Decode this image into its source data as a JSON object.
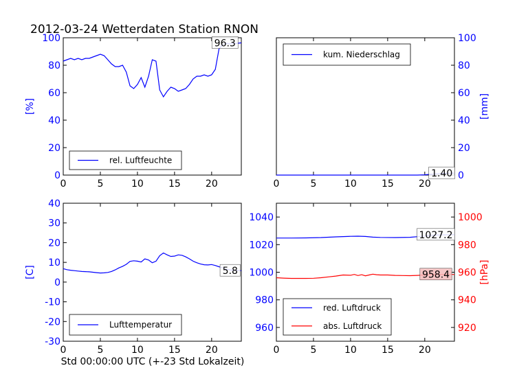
{
  "figure": {
    "title": "2012-03-24 Wetterdaten Station RNON",
    "xlabel": "Std 00:00:00 UTC (+-23 Std Lokalzeit)"
  },
  "colors": {
    "blue": "#0000ff",
    "red": "#ff0000",
    "black": "#000000",
    "annot_bg": "#ffffff",
    "annot_bg_red": "#f4bcbc"
  },
  "chart_data": [
    {
      "id": "humidity",
      "type": "line",
      "ylabel": "[%]",
      "ylabel_side": "left",
      "ylabel_color": "#0000ff",
      "ylim": [
        0,
        100
      ],
      "yticks": [
        0,
        20,
        40,
        60,
        80,
        100
      ],
      "xlim": [
        0,
        24
      ],
      "xticks": [
        0,
        5,
        10,
        15,
        20
      ],
      "legend": "bottom-left",
      "annotation": "96.3",
      "annotation_x": 21.8,
      "annotation_y": 96.3,
      "series": [
        {
          "name": "rel. Luftfeuchte",
          "color": "#0000ff",
          "x": [
            0,
            0.5,
            1,
            1.5,
            2,
            2.5,
            3,
            3.5,
            4,
            4.5,
            5,
            5.5,
            6,
            6.5,
            7,
            7.5,
            8,
            8.5,
            9,
            9.5,
            10,
            10.5,
            11,
            11.5,
            12,
            12.5,
            13,
            13.5,
            14,
            14.5,
            15,
            15.5,
            16,
            16.5,
            17,
            17.5,
            18,
            18.5,
            19,
            19.5,
            20,
            20.5,
            21,
            21.5,
            22,
            22.5,
            23,
            23.5,
            24
          ],
          "values": [
            83,
            84,
            85,
            84,
            85,
            84,
            85,
            85,
            86,
            87,
            88,
            87,
            84,
            81,
            79,
            79,
            80,
            75,
            65,
            63,
            66,
            71,
            64,
            72,
            84,
            83,
            62,
            57,
            61,
            64,
            63,
            61,
            62,
            63,
            66,
            70,
            72,
            72,
            73,
            72,
            73,
            77,
            92,
            95,
            96,
            95.5,
            95.8,
            96,
            96.3
          ]
        }
      ]
    },
    {
      "id": "precip",
      "type": "line",
      "ylabel": "[mm]",
      "ylabel_side": "right",
      "ylabel_color": "#0000ff",
      "ylim": [
        0,
        100
      ],
      "yticks": [
        0,
        20,
        40,
        60,
        80,
        100
      ],
      "xlim": [
        0,
        24
      ],
      "xticks": [
        0,
        5,
        10,
        15,
        20
      ],
      "legend": "top-left",
      "annotation": "1.40",
      "annotation_x": 22.3,
      "annotation_y": 1.4,
      "series": [
        {
          "name": "kum. Niederschlag",
          "color": "#0000ff",
          "x": [
            0,
            5,
            10,
            15,
            19,
            20,
            21,
            22,
            23,
            24
          ],
          "values": [
            0,
            0,
            0,
            0,
            0,
            0.2,
            0.7,
            1.1,
            1.3,
            1.4
          ]
        }
      ]
    },
    {
      "id": "temperature",
      "type": "line",
      "ylabel": "[C]",
      "ylabel_side": "left",
      "ylabel_color": "#0000ff",
      "ylim": [
        -30,
        40
      ],
      "yticks": [
        -30,
        -20,
        -10,
        0,
        10,
        20,
        30,
        40
      ],
      "xlim": [
        0,
        24
      ],
      "xticks": [
        0,
        5,
        10,
        15,
        20
      ],
      "legend": "bottom-left",
      "annotation": "5.8",
      "annotation_x": 22.5,
      "annotation_y": 5.8,
      "series": [
        {
          "name": "Lufttemperatur",
          "color": "#0000ff",
          "x": [
            0,
            0.5,
            1,
            1.5,
            2,
            2.5,
            3,
            3.5,
            4,
            4.5,
            5,
            5.5,
            6,
            6.5,
            7,
            7.5,
            8,
            8.5,
            9,
            9.5,
            10,
            10.5,
            11,
            11.5,
            12,
            12.5,
            13,
            13.5,
            14,
            14.5,
            15,
            15.5,
            16,
            16.5,
            17,
            17.5,
            18,
            18.5,
            19,
            19.5,
            20,
            20.5,
            21,
            21.5,
            22,
            22.5,
            23,
            23.5,
            24
          ],
          "values": [
            6.8,
            6.3,
            6.0,
            5.8,
            5.6,
            5.4,
            5.3,
            5.2,
            5.0,
            4.8,
            4.6,
            4.7,
            4.9,
            5.4,
            6.2,
            7.2,
            8.0,
            9.0,
            10.5,
            10.8,
            10.6,
            10.2,
            11.8,
            11.2,
            9.8,
            10.6,
            13.4,
            14.8,
            13.8,
            13.0,
            13.2,
            13.8,
            13.6,
            12.8,
            11.8,
            10.6,
            9.8,
            9.2,
            8.8,
            8.7,
            8.9,
            8.4,
            7.8,
            7.2,
            6.6,
            6.2,
            6.0,
            5.9,
            5.8
          ]
        }
      ]
    },
    {
      "id": "pressure",
      "type": "line",
      "ylabel": "[hPa]",
      "ylabel_side": "right",
      "ylabel_color": "#ff0000",
      "ylim_left": [
        950,
        1050
      ],
      "yticks_left": [
        960,
        980,
        1000,
        1020,
        1040
      ],
      "ylim_right": [
        910,
        1010
      ],
      "yticks_right": [
        920,
        940,
        960,
        980,
        1000
      ],
      "xlim": [
        0,
        24
      ],
      "xticks": [
        0,
        5,
        10,
        15,
        20
      ],
      "legend": "bottom-left",
      "annotations": [
        {
          "text": "1027.2",
          "x": 21.5,
          "y": 1027.2,
          "axis": "left"
        },
        {
          "text": "958.4",
          "x": 21.5,
          "y": 958.4,
          "axis": "right"
        }
      ],
      "series": [
        {
          "name": "red. Luftdruck",
          "color": "#0000ff",
          "axis": "left",
          "x": [
            0,
            2,
            4,
            6,
            8,
            10,
            11,
            12,
            13,
            14,
            16,
            18,
            20,
            21,
            22,
            24
          ],
          "values": [
            1024.8,
            1024.8,
            1024.9,
            1025.1,
            1025.6,
            1026.0,
            1026.1,
            1025.9,
            1025.4,
            1025.2,
            1025.1,
            1025.3,
            1026.2,
            1026.8,
            1027.0,
            1027.2
          ]
        },
        {
          "name": "abs. Luftdruck",
          "color": "#ff0000",
          "axis": "right",
          "x": [
            0,
            1,
            2,
            3,
            4,
            5,
            6,
            7,
            8,
            9,
            10,
            10.5,
            11,
            11.5,
            12,
            12.5,
            13,
            13.5,
            14,
            15,
            16,
            17,
            18,
            19,
            20,
            21,
            22,
            23,
            24
          ],
          "values": [
            956.0,
            955.7,
            955.5,
            955.5,
            955.5,
            955.6,
            956.0,
            956.6,
            957.2,
            958.0,
            957.8,
            958.4,
            957.6,
            958.2,
            957.4,
            958.0,
            958.6,
            958.2,
            958.0,
            958.0,
            957.7,
            957.6,
            957.5,
            957.7,
            958.0,
            958.3,
            958.4,
            958.4,
            958.4
          ]
        }
      ]
    }
  ]
}
